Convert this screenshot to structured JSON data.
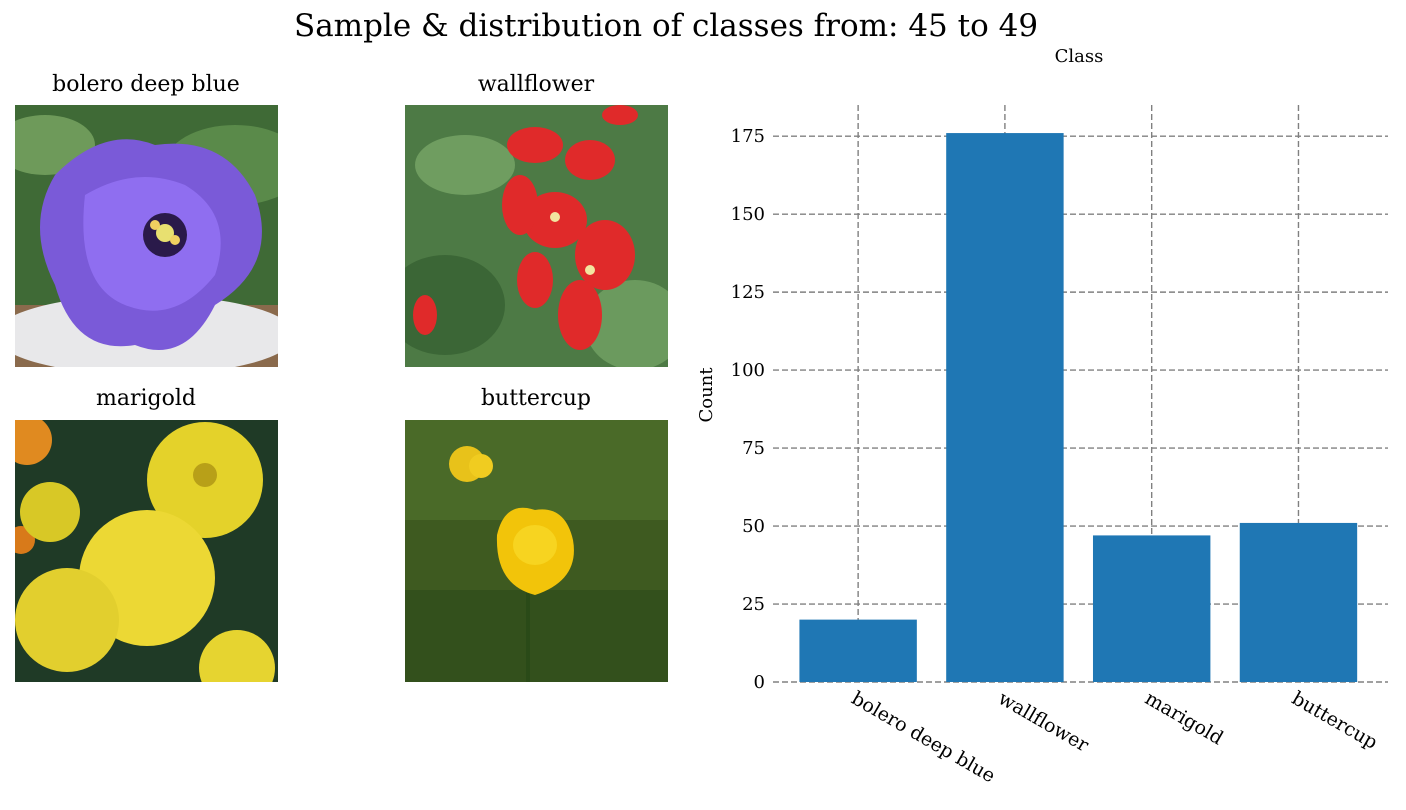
{
  "figure": {
    "suptitle": "Sample & distribution of classes from: 45 to 49"
  },
  "samples": [
    {
      "label": "bolero deep blue",
      "image": "purple-flower-photo"
    },
    {
      "label": "wallflower",
      "image": "red-flower-photo"
    },
    {
      "label": "marigold",
      "image": "yellow-marigold-photo"
    },
    {
      "label": "buttercup",
      "image": "yellow-buttercup-photo"
    }
  ],
  "chart_data": {
    "type": "bar",
    "title": "Class",
    "xlabel": "",
    "ylabel": "Count",
    "categories": [
      "bolero deep blue",
      "wallflower",
      "marigold",
      "buttercup"
    ],
    "values": [
      20,
      176,
      47,
      51
    ],
    "ylim": [
      0,
      185
    ],
    "yticks": [
      0,
      25,
      50,
      75,
      100,
      125,
      150,
      175
    ],
    "grid": true,
    "bar_color": "#1f77b4",
    "grid_color": "#808080"
  }
}
